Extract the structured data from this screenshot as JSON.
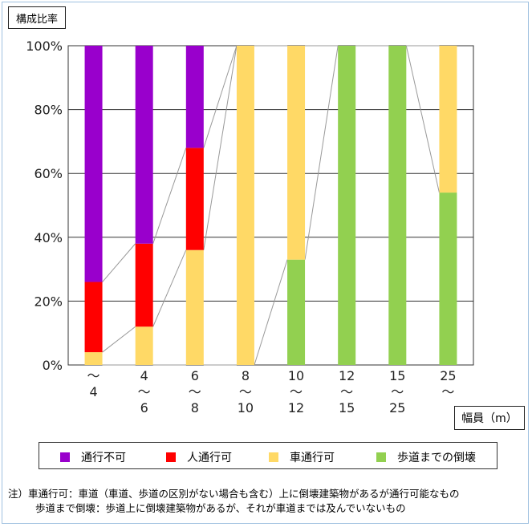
{
  "ylabel": "構成比率",
  "xlabel": "幅員（m）",
  "legend": [
    {
      "name": "通行不可",
      "color": "#9900cc"
    },
    {
      "name": "人通行可",
      "color": "#ff0000"
    },
    {
      "name": "車通行可",
      "color": "#ffd966"
    },
    {
      "name": "歩道までの倒壊",
      "color": "#92d050"
    }
  ],
  "note": {
    "prefix": "注）",
    "line1": "車通行可：車道（車道、歩道の区別がない場合も含む）上に倒壊建築物があるが通行可能なもの",
    "line2": "歩道まで倒壊：歩道上に倒壊建築物があるが、それが車道までは及んでいないもの"
  },
  "chart_data": {
    "type": "bar",
    "stacked": true,
    "ylim": [
      0,
      100
    ],
    "yticks": [
      "0%",
      "20%",
      "40%",
      "60%",
      "80%",
      "100%"
    ],
    "categories": [
      [
        "～",
        "4"
      ],
      [
        "4",
        "～",
        "6"
      ],
      [
        "6",
        "～",
        "8"
      ],
      [
        "8",
        "～",
        "10"
      ],
      [
        "10",
        "～",
        "12"
      ],
      [
        "12",
        "～",
        "15"
      ],
      [
        "15",
        "～",
        "25"
      ],
      [
        "25",
        "～"
      ]
    ],
    "series": [
      {
        "name": "歩道までの倒壊",
        "color": "#92d050",
        "values": [
          0,
          0,
          0,
          0,
          33,
          100,
          100,
          54
        ]
      },
      {
        "name": "車通行可",
        "color": "#ffd966",
        "values": [
          4,
          12,
          36,
          100,
          67,
          0,
          0,
          46
        ]
      },
      {
        "name": "人通行可",
        "color": "#ff0000",
        "values": [
          22,
          26,
          32,
          0,
          0,
          0,
          0,
          0
        ]
      },
      {
        "name": "通行不可",
        "color": "#9900cc",
        "values": [
          74,
          62,
          32,
          0,
          0,
          0,
          0,
          0
        ]
      }
    ],
    "grid": true,
    "connector_lines": true
  }
}
